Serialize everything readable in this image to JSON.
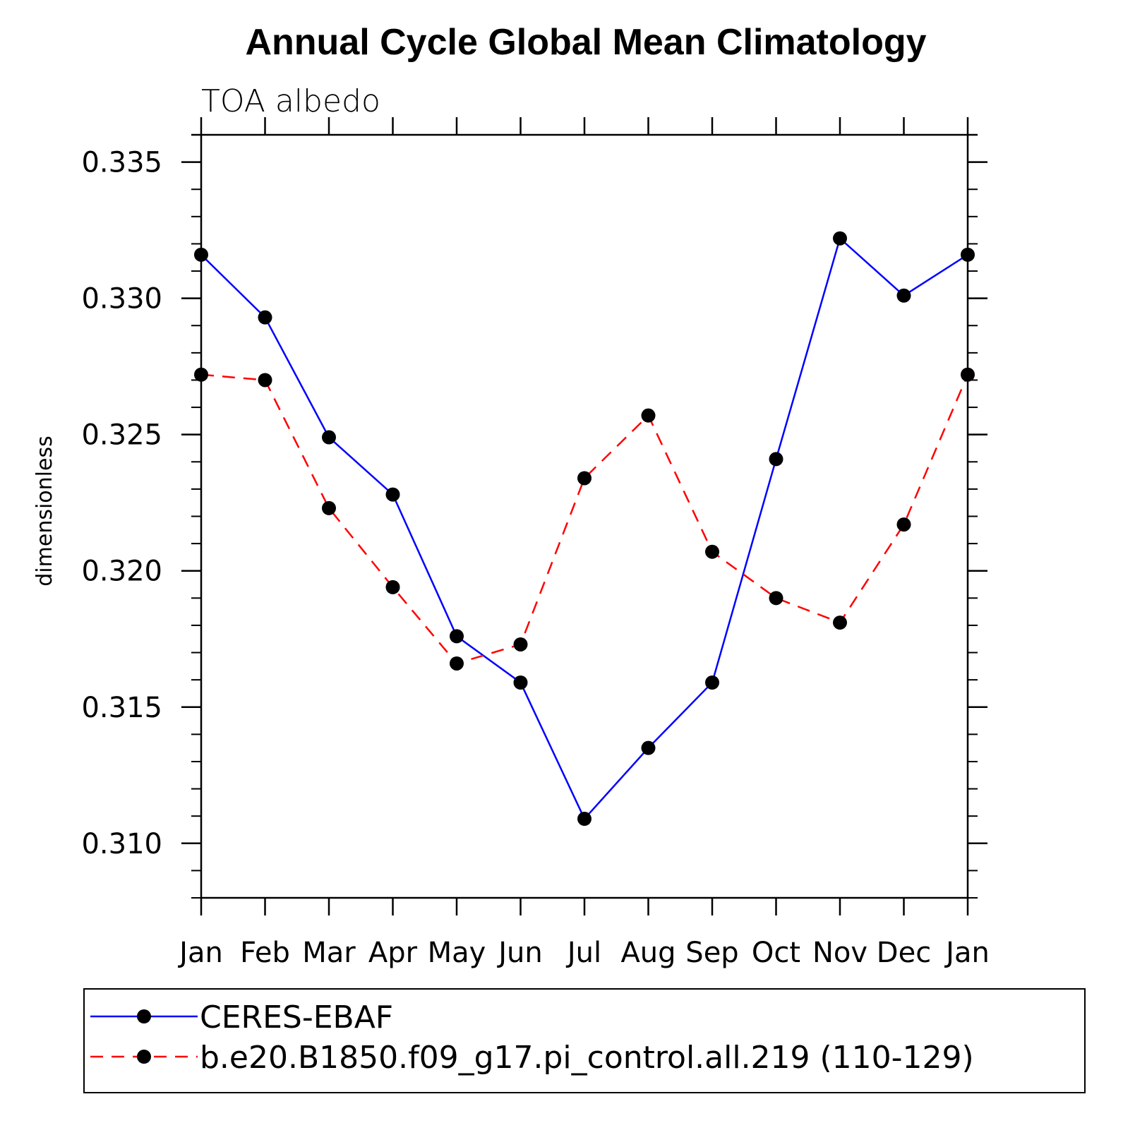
{
  "chart_data": {
    "type": "line",
    "title": "Annual Cycle Global Mean Climatology",
    "subtitle": "TOA albedo",
    "xlabel": "",
    "ylabel": "dimensionless",
    "categories": [
      "Jan",
      "Feb",
      "Mar",
      "Apr",
      "May",
      "Jun",
      "Jul",
      "Aug",
      "Sep",
      "Oct",
      "Nov",
      "Dec",
      "Jan"
    ],
    "ylim": [
      0.308,
      0.336
    ],
    "yticks": [
      0.31,
      0.315,
      0.32,
      0.325,
      0.33,
      0.335
    ],
    "ytick_labels": [
      "0.310",
      "0.315",
      "0.320",
      "0.325",
      "0.330",
      "0.335"
    ],
    "grid": false,
    "legend_position": "bottom",
    "series": [
      {
        "name": "CERES-EBAF",
        "color": "#0000ff",
        "dash": "solid",
        "values": [
          0.3316,
          0.3293,
          0.3249,
          0.3228,
          0.3176,
          0.3159,
          0.3109,
          0.3135,
          0.3159,
          0.3241,
          0.3322,
          0.3301,
          0.3316
        ]
      },
      {
        "name": "b.e20.B1850.f09_g17.pi_control.all.219 (110-129)",
        "color": "#ff0000",
        "dash": "dashed",
        "values": [
          0.3272,
          0.327,
          0.3223,
          0.3194,
          0.3166,
          0.3173,
          0.3234,
          0.3257,
          0.3207,
          0.319,
          0.3181,
          0.3217,
          0.3272
        ]
      }
    ]
  }
}
